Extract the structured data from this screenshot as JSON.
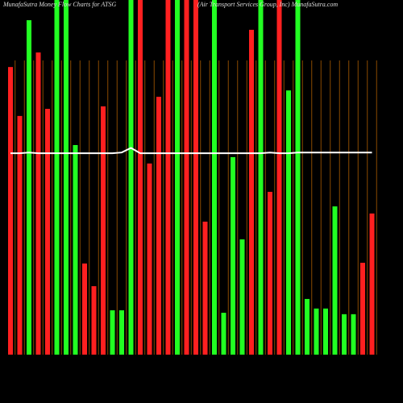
{
  "chart_data": {
    "type": "bar",
    "title": "MunafaSutra Money Flow Charts for ATSG",
    "subtitle": "(Air Transport Services Group, Inc) MunafaSutra.com",
    "values": [
      81.1,
      67.3,
      94.3,
      85.2,
      69.3,
      100,
      100,
      59.1,
      25.7,
      19.3,
      70,
      12.5,
      12.5,
      100,
      100,
      53.9,
      72.7,
      100,
      100,
      100,
      100,
      37.5,
      100,
      11.8,
      55.7,
      32.5,
      91.6,
      100,
      45.9,
      100,
      74.5,
      100,
      15.7,
      13,
      13,
      41.8,
      11.4,
      11.4,
      25.9,
      39.8
    ],
    "bar_colors": [
      "#ff2020",
      "#ff2020",
      "#22ff22",
      "#ff2020",
      "#ff2020",
      "#22ff22",
      "#22ff22",
      "#22ff22",
      "#ff2020",
      "#ff2020",
      "#ff2020",
      "#22ff22",
      "#22ff22",
      "#22ff22",
      "#ff2020",
      "#ff2020",
      "#ff2020",
      "#ff2020",
      "#22ff22",
      "#ff2020",
      "#ff2020",
      "#ff2020",
      "#22ff22",
      "#22ff22",
      "#22ff22",
      "#22ff22",
      "#ff2020",
      "#22ff22",
      "#ff2020",
      "#ff2020",
      "#22ff22",
      "#22ff22",
      "#22ff22",
      "#22ff22",
      "#22ff22",
      "#22ff22",
      "#22ff22",
      "#22ff22",
      "#ff2020",
      "#ff2020"
    ],
    "line_values": [
      56.8,
      56.8,
      57.0,
      56.8,
      56.8,
      56.8,
      56.8,
      56.8,
      56.8,
      56.8,
      56.8,
      56.8,
      57.0,
      58.3,
      56.8,
      56.8,
      56.8,
      56.8,
      56.8,
      56.8,
      56.8,
      56.8,
      56.8,
      56.8,
      56.8,
      56.8,
      56.8,
      56.8,
      57.0,
      56.8,
      56.8,
      57.0,
      57.0,
      57.0,
      57.0,
      57.0,
      57.0,
      57.0,
      57.0,
      57.0
    ],
    "line_color": "#ffffff",
    "grid_color": "#8a4a00",
    "ylim": [
      0,
      100
    ]
  }
}
